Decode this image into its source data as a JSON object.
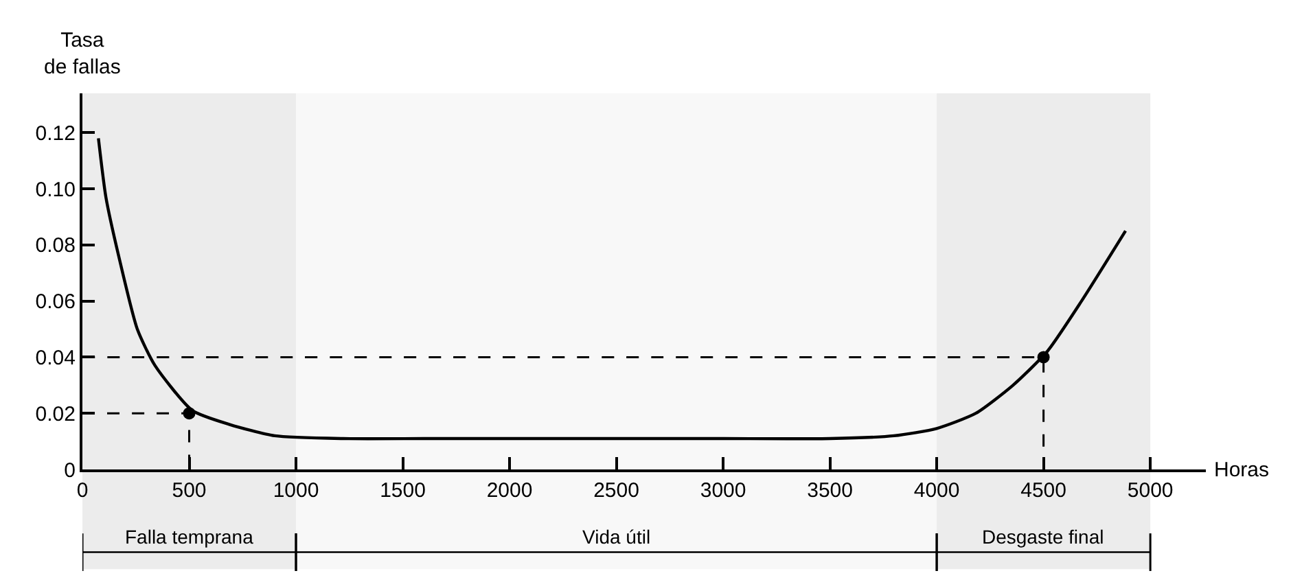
{
  "chart_data": {
    "type": "line",
    "xlabel": "Horas",
    "ylabel": "Tasa\nde fallas",
    "xlim": [
      0,
      5260
    ],
    "ylim": [
      0,
      0.134
    ],
    "xticks": [
      0,
      500,
      1000,
      1500,
      2000,
      2500,
      3000,
      3500,
      4000,
      4500,
      5000
    ],
    "yticks": [
      0,
      0.02,
      0.04,
      0.06,
      0.08,
      {
        "value": 0.1,
        "label": "0.10"
      },
      0.12
    ],
    "grid": false,
    "series": [
      {
        "color": "#000000",
        "line_style": "solid",
        "marker": "none",
        "x": [
          75,
          110,
          170,
          257,
          340,
          515,
          690,
          900,
          1220,
          1600,
          2000,
          2500,
          3000,
          3500,
          3800,
          4000,
          4183,
          4357,
          4517,
          4678,
          4884
        ],
        "values": [
          0.118,
          0.097,
          0.076,
          0.05,
          0.037,
          0.021,
          0.016,
          0.012,
          0.011,
          0.011,
          0.011,
          0.011,
          0.011,
          0.011,
          0.012,
          0.0146,
          0.02,
          0.03,
          0.042,
          0.06,
          0.085
        ]
      },
      {
        "color": "#000000",
        "line_style": "dashed",
        "marker": "none",
        "x": [
          0,
          500,
          500
        ],
        "values": [
          0.02,
          0.02,
          0
        ]
      },
      {
        "color": "#000000",
        "line_style": "dashed",
        "marker": "none",
        "x": [
          0,
          4500,
          4500
        ],
        "values": [
          0.04,
          0.04,
          0
        ]
      },
      {
        "type": "scatter",
        "color": "#000000",
        "marker": "circle",
        "x": [
          500,
          4500
        ],
        "values": [
          0.02,
          0.04
        ]
      }
    ],
    "bands": [
      {
        "axis": "x",
        "from": 0,
        "to": 1000,
        "label": "Falla temprana",
        "color": "#ececec"
      },
      {
        "axis": "x",
        "from": 1000,
        "to": 4000,
        "label": "Vida útil",
        "color": "#f8f8f8"
      },
      {
        "axis": "x",
        "from": 4000,
        "to": 5000,
        "label": "Desgaste final",
        "color": "#ececec"
      }
    ]
  }
}
